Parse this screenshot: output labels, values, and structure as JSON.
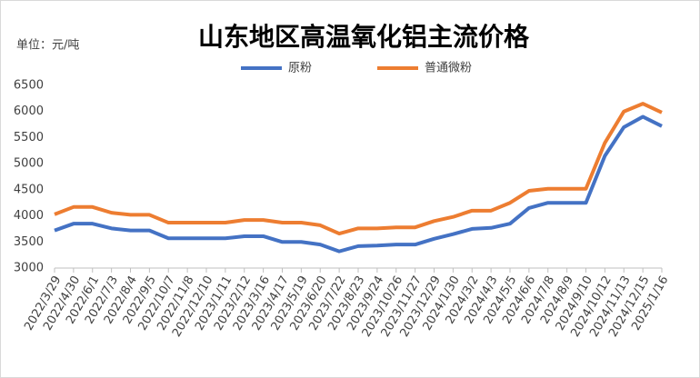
{
  "chart_data": {
    "type": "line",
    "title": "山东地区高温氧化铝主流价格",
    "unit_label": "单位：元/吨",
    "categories": [
      "2022/3/29",
      "2022/4/30",
      "2022/6/1",
      "2022/7/3",
      "2022/8/4",
      "2022/9/5",
      "2022/10/7",
      "2022/11/8",
      "2022/12/10",
      "2023/1/11",
      "2023/2/12",
      "2023/3/16",
      "2023/4/17",
      "2023/5/19",
      "2023/6/20",
      "2023/7/22",
      "2023/8/23",
      "2023/9/24",
      "2023/10/26",
      "2023/11/27",
      "2023/12/29",
      "2024/1/30",
      "2024/3/2",
      "2024/4/3",
      "2024/5/5",
      "2024/6/6",
      "2024/7/8",
      "2024/8/9",
      "2024/9/10",
      "2024/10/12",
      "2024/11/13",
      "2024/12/15",
      "2025/1/16"
    ],
    "series": [
      {
        "name": "原粉",
        "color": "#4472c4",
        "values": [
          3720,
          3850,
          3850,
          3760,
          3720,
          3720,
          3570,
          3570,
          3570,
          3570,
          3610,
          3610,
          3500,
          3500,
          3450,
          3320,
          3420,
          3430,
          3450,
          3450,
          3560,
          3650,
          3750,
          3770,
          3850,
          4150,
          4250,
          4250,
          4250,
          5150,
          5700,
          5900,
          5720
        ]
      },
      {
        "name": "普通微粉",
        "color": "#ed7d31",
        "values": [
          4030,
          4170,
          4170,
          4060,
          4020,
          4020,
          3870,
          3870,
          3870,
          3870,
          3920,
          3920,
          3870,
          3870,
          3820,
          3660,
          3760,
          3760,
          3780,
          3780,
          3900,
          3980,
          4100,
          4100,
          4250,
          4480,
          4520,
          4520,
          4520,
          5400,
          6000,
          6150,
          5980
        ]
      }
    ],
    "ylim": [
      3000,
      6500
    ],
    "yticks": [
      3000,
      3500,
      4000,
      4500,
      5000,
      5500,
      6000,
      6500
    ],
    "grid": false
  }
}
